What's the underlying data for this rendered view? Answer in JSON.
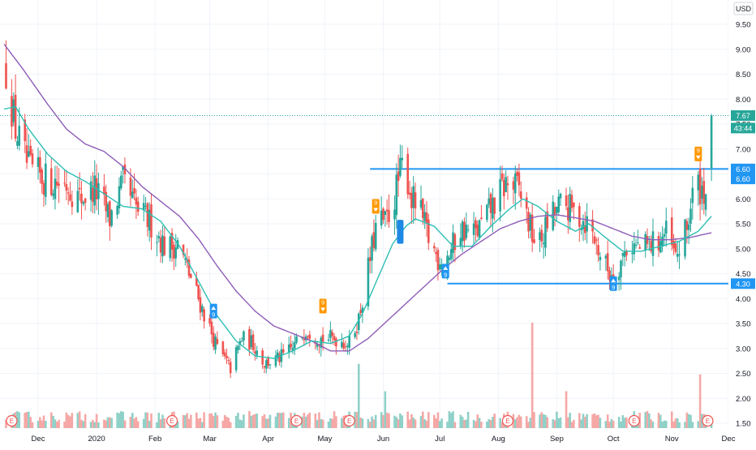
{
  "chart_data": {
    "type": "candlestick",
    "currency": "USD",
    "y_ticks": [
      9.5,
      9.0,
      8.5,
      8.0,
      7.5,
      7.0,
      6.5,
      6.0,
      5.5,
      5.0,
      4.5,
      4.0,
      3.5,
      3.0,
      2.5,
      2.0,
      1.5
    ],
    "ylim": [
      1.4,
      9.82
    ],
    "x_tick_labels": [
      {
        "label": "Dec",
        "day": 0
      },
      {
        "label": "2020",
        "day": 31
      },
      {
        "label": "Feb",
        "day": 62
      },
      {
        "label": "Mar",
        "day": 91
      },
      {
        "label": "Apr",
        "day": 122
      },
      {
        "label": "May",
        "day": 152
      },
      {
        "label": "Jun",
        "day": 183
      },
      {
        "label": "Jul",
        "day": 213
      },
      {
        "label": "Aug",
        "day": 244
      },
      {
        "label": "Sep",
        "day": 275
      },
      {
        "label": "Oct",
        "day": 305
      },
      {
        "label": "Nov",
        "day": 336
      },
      {
        "label": "Dec",
        "day": 366
      }
    ],
    "xlim_days": [
      -18,
      394
    ],
    "price_keypoints": [
      {
        "day": -17,
        "close": 8.6
      },
      {
        "day": -12,
        "close": 7.4
      },
      {
        "day": -5,
        "close": 6.6
      },
      {
        "day": 3,
        "close": 6.4
      },
      {
        "day": 15,
        "close": 6.3
      },
      {
        "day": 22,
        "close": 6.0
      },
      {
        "day": 30,
        "close": 6.2
      },
      {
        "day": 38,
        "close": 5.6
      },
      {
        "day": 45,
        "close": 6.3
      },
      {
        "day": 52,
        "close": 5.8
      },
      {
        "day": 60,
        "close": 5.5
      },
      {
        "day": 68,
        "close": 5.0
      },
      {
        "day": 74,
        "close": 5.1
      },
      {
        "day": 80,
        "close": 4.5
      },
      {
        "day": 88,
        "close": 3.7
      },
      {
        "day": 95,
        "close": 3.0
      },
      {
        "day": 102,
        "close": 2.6
      },
      {
        "day": 108,
        "close": 3.2
      },
      {
        "day": 114,
        "close": 3.1
      },
      {
        "day": 120,
        "close": 2.7
      },
      {
        "day": 128,
        "close": 2.8
      },
      {
        "day": 135,
        "close": 3.0
      },
      {
        "day": 142,
        "close": 3.4
      },
      {
        "day": 150,
        "close": 3.2
      },
      {
        "day": 158,
        "close": 3.2
      },
      {
        "day": 165,
        "close": 3.1
      },
      {
        "day": 170,
        "close": 3.6
      },
      {
        "day": 175,
        "close": 4.6
      },
      {
        "day": 180,
        "close": 5.6
      },
      {
        "day": 184,
        "close": 5.5
      },
      {
        "day": 188,
        "close": 5.9
      },
      {
        "day": 194,
        "close": 6.8
      },
      {
        "day": 198,
        "close": 6.0
      },
      {
        "day": 202,
        "close": 5.8
      },
      {
        "day": 207,
        "close": 5.2
      },
      {
        "day": 212,
        "close": 4.8
      },
      {
        "day": 218,
        "close": 4.9
      },
      {
        "day": 224,
        "close": 5.4
      },
      {
        "day": 232,
        "close": 5.3
      },
      {
        "day": 240,
        "close": 5.8
      },
      {
        "day": 248,
        "close": 6.3
      },
      {
        "day": 255,
        "close": 6.2
      },
      {
        "day": 261,
        "close": 5.4
      },
      {
        "day": 265,
        "close": 5.0
      },
      {
        "day": 271,
        "close": 5.6
      },
      {
        "day": 278,
        "close": 5.9
      },
      {
        "day": 285,
        "close": 5.7
      },
      {
        "day": 292,
        "close": 5.5
      },
      {
        "day": 298,
        "close": 4.9
      },
      {
        "day": 303,
        "close": 4.5
      },
      {
        "day": 307,
        "close": 4.6
      },
      {
        "day": 313,
        "close": 5.1
      },
      {
        "day": 320,
        "close": 5.0
      },
      {
        "day": 326,
        "close": 5.1
      },
      {
        "day": 333,
        "close": 5.3
      },
      {
        "day": 338,
        "close": 4.8
      },
      {
        "day": 344,
        "close": 5.4
      },
      {
        "day": 348,
        "close": 6.3
      },
      {
        "day": 352,
        "close": 6.2
      },
      {
        "day": 356,
        "close": 6.1
      },
      {
        "day": 357,
        "close": 7.67
      }
    ],
    "ma_fast": [
      {
        "day": -18,
        "value": 7.8
      },
      {
        "day": -12,
        "value": 7.85
      },
      {
        "day": -5,
        "value": 7.4
      },
      {
        "day": 5,
        "value": 6.9
      },
      {
        "day": 15,
        "value": 6.55
      },
      {
        "day": 25,
        "value": 6.35
      },
      {
        "day": 35,
        "value": 6.1
      },
      {
        "day": 45,
        "value": 5.85
      },
      {
        "day": 55,
        "value": 5.8
      },
      {
        "day": 65,
        "value": 5.55
      },
      {
        "day": 75,
        "value": 5.05
      },
      {
        "day": 85,
        "value": 4.35
      },
      {
        "day": 95,
        "value": 3.65
      },
      {
        "day": 105,
        "value": 3.15
      },
      {
        "day": 115,
        "value": 2.85
      },
      {
        "day": 125,
        "value": 2.8
      },
      {
        "day": 135,
        "value": 2.95
      },
      {
        "day": 145,
        "value": 3.15
      },
      {
        "day": 155,
        "value": 3.1
      },
      {
        "day": 165,
        "value": 3.25
      },
      {
        "day": 172,
        "value": 3.7
      },
      {
        "day": 180,
        "value": 4.4
      },
      {
        "day": 188,
        "value": 5.1
      },
      {
        "day": 195,
        "value": 5.45
      },
      {
        "day": 200,
        "value": 5.6
      },
      {
        "day": 210,
        "value": 5.45
      },
      {
        "day": 220,
        "value": 5.05
      },
      {
        "day": 230,
        "value": 5.05
      },
      {
        "day": 240,
        "value": 5.45
      },
      {
        "day": 250,
        "value": 5.8
      },
      {
        "day": 257,
        "value": 6.0
      },
      {
        "day": 265,
        "value": 5.85
      },
      {
        "day": 275,
        "value": 5.55
      },
      {
        "day": 285,
        "value": 5.35
      },
      {
        "day": 292,
        "value": 5.5
      },
      {
        "day": 300,
        "value": 5.25
      },
      {
        "day": 310,
        "value": 4.95
      },
      {
        "day": 320,
        "value": 4.95
      },
      {
        "day": 330,
        "value": 5.05
      },
      {
        "day": 340,
        "value": 5.15
      },
      {
        "day": 350,
        "value": 5.35
      },
      {
        "day": 357,
        "value": 5.65
      }
    ],
    "ma_slow": [
      {
        "day": -18,
        "value": 9.1
      },
      {
        "day": -8,
        "value": 8.6
      },
      {
        "day": 5,
        "value": 7.9
      },
      {
        "day": 15,
        "value": 7.4
      },
      {
        "day": 25,
        "value": 7.1
      },
      {
        "day": 35,
        "value": 6.95
      },
      {
        "day": 45,
        "value": 6.65
      },
      {
        "day": 55,
        "value": 6.25
      },
      {
        "day": 65,
        "value": 5.95
      },
      {
        "day": 75,
        "value": 5.65
      },
      {
        "day": 85,
        "value": 5.2
      },
      {
        "day": 95,
        "value": 4.65
      },
      {
        "day": 105,
        "value": 4.15
      },
      {
        "day": 115,
        "value": 3.75
      },
      {
        "day": 125,
        "value": 3.45
      },
      {
        "day": 135,
        "value": 3.3
      },
      {
        "day": 145,
        "value": 3.15
      },
      {
        "day": 155,
        "value": 2.95
      },
      {
        "day": 165,
        "value": 2.95
      },
      {
        "day": 175,
        "value": 3.2
      },
      {
        "day": 185,
        "value": 3.55
      },
      {
        "day": 195,
        "value": 3.9
      },
      {
        "day": 205,
        "value": 4.25
      },
      {
        "day": 215,
        "value": 4.6
      },
      {
        "day": 225,
        "value": 4.9
      },
      {
        "day": 235,
        "value": 5.15
      },
      {
        "day": 245,
        "value": 5.4
      },
      {
        "day": 255,
        "value": 5.55
      },
      {
        "day": 265,
        "value": 5.65
      },
      {
        "day": 275,
        "value": 5.68
      },
      {
        "day": 285,
        "value": 5.62
      },
      {
        "day": 295,
        "value": 5.55
      },
      {
        "day": 305,
        "value": 5.4
      },
      {
        "day": 315,
        "value": 5.25
      },
      {
        "day": 325,
        "value": 5.18
      },
      {
        "day": 335,
        "value": 5.18
      },
      {
        "day": 345,
        "value": 5.22
      },
      {
        "day": 357,
        "value": 5.32
      }
    ],
    "horizontal_lines": [
      {
        "value": 6.6,
        "label": "6.60",
        "from_day": 176,
        "color": "#2196f3"
      },
      {
        "value": 4.3,
        "label": "4.30",
        "from_day": 217,
        "color": "#2196f3"
      }
    ],
    "price_labels": [
      {
        "value": 7.67,
        "label": "7.67",
        "color": "#26a69a"
      },
      {
        "value": 7.42,
        "label": "43:44",
        "color": "#26a69a"
      },
      {
        "value": 6.6,
        "label": "6.60",
        "color": "#2196f3"
      },
      {
        "value": 6.4,
        "label": "6.60",
        "color": "#2196f3"
      },
      {
        "value": 4.3,
        "label": "4.30",
        "color": "#2196f3"
      }
    ],
    "last_price_dotted": 7.67,
    "signals": [
      {
        "type": "buy",
        "label": "9",
        "day": 93,
        "value": 3.75,
        "color": "#2196f3"
      },
      {
        "type": "sell",
        "label": "9",
        "day": 151,
        "value": 3.85,
        "color": "#ff9800"
      },
      {
        "type": "sell",
        "label": "9",
        "day": 179,
        "value": 5.85,
        "color": "#ff9800"
      },
      {
        "type": "buy",
        "label": "9",
        "day": 216,
        "value": 4.55,
        "color": "#2196f3"
      },
      {
        "type": "buy",
        "label": "9",
        "day": 305,
        "value": 4.3,
        "color": "#2196f3"
      },
      {
        "type": "sell",
        "label": "9",
        "day": 350,
        "value": 6.9,
        "color": "#ff9800"
      }
    ],
    "highlight_box": {
      "day": 192,
      "low": 5.1,
      "high": 5.58,
      "color": "#1e88e5"
    },
    "earnings_markers": [
      {
        "day": -14,
        "label": "E"
      },
      {
        "day": 71,
        "label": "E"
      },
      {
        "day": 137,
        "label": "E"
      },
      {
        "day": 165,
        "label": "E"
      },
      {
        "day": 249,
        "label": "E"
      },
      {
        "day": 316,
        "label": "E"
      },
      {
        "day": 355,
        "label": "E"
      }
    ],
    "volume_spikes": [
      {
        "day": 26,
        "value": 0.42
      },
      {
        "day": 170,
        "value": 0.61
      },
      {
        "day": 174,
        "value": 0.38
      },
      {
        "day": 184,
        "value": 0.35
      },
      {
        "day": 262,
        "value": 1.0
      },
      {
        "day": 280,
        "value": 0.35
      },
      {
        "day": 351,
        "value": 0.51
      },
      {
        "day": 356,
        "value": 0.57
      }
    ],
    "volume_baseline": 0.12,
    "colors": {
      "up": "#26a69a",
      "down": "#ef5350",
      "volume_up": "#8fd1c8",
      "volume_down": "#f5a8a6",
      "ma_fast": "#2bbfb4",
      "ma_slow": "#8e5cb8",
      "grid": "#f0f3fa",
      "axis_text": "#131722"
    }
  }
}
